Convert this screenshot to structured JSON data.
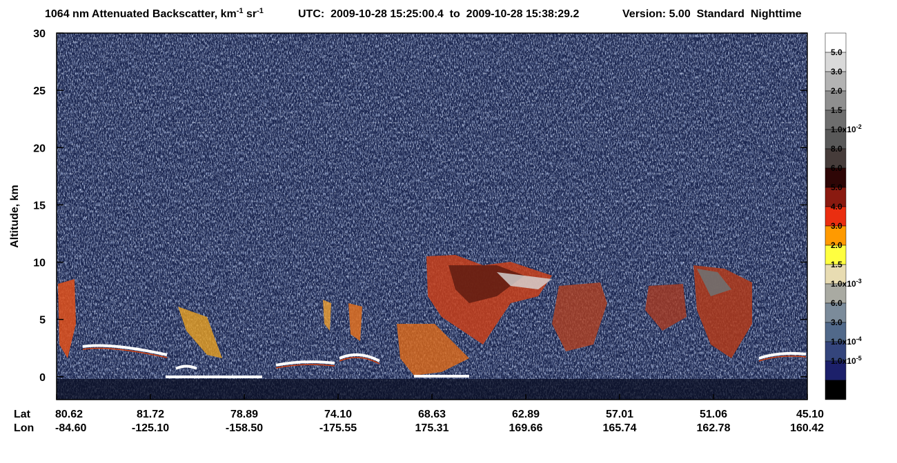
{
  "chart_data": {
    "type": "heatmap",
    "title": [
      "1064 nm Attenuated Backscatter, km",
      "-1",
      " sr",
      "-1"
    ],
    "utc": "UTC:  2009-10-28 15:25:00.4  to  2009-10-28 15:38:29.2",
    "version": "Version: 5.00  Standard  Nighttime",
    "ylabel": "Altitude, km",
    "ylim": [
      -2,
      30
    ],
    "yticks": [
      0,
      5,
      10,
      15,
      20,
      25,
      30
    ],
    "x_row_labels": [
      "Lat",
      "Lon"
    ],
    "lat": [
      "80.62",
      "81.72",
      "78.89",
      "74.10",
      "68.63",
      "62.89",
      "57.01",
      "51.06",
      "45.10"
    ],
    "lon": [
      "-84.60",
      "-125.10",
      "-158.50",
      "-175.55",
      "175.31",
      "169.66",
      "165.74",
      "162.78",
      "160.42"
    ],
    "colorbar": {
      "colors": [
        "#ffffff",
        "#d9d9d9",
        "#b3b3b3",
        "#8f8f8f",
        "#6e6e6e",
        "#595959",
        "#463c3a",
        "#2e0606",
        "#8a1a10",
        "#ea2e10",
        "#ff9a00",
        "#ffff40",
        "#e8dcb2",
        "#a9aaa2",
        "#7b8b9a",
        "#51698a",
        "#34457c",
        "#1c206a",
        "#000000"
      ],
      "labels": [
        {
          "label": "5.0"
        },
        {
          "label": "3.0"
        },
        {
          "label": "2.0"
        },
        {
          "label": "1.5"
        },
        {
          "label": "1.0x10",
          "sup": "-2"
        },
        {
          "label": "8.0"
        },
        {
          "label": "6.0"
        },
        {
          "label": "5.0"
        },
        {
          "label": "4.0"
        },
        {
          "label": "3.0"
        },
        {
          "label": "2.0"
        },
        {
          "label": "1.5"
        },
        {
          "label": "1.0x10",
          "sup": "-3"
        },
        {
          "label": "6.0"
        },
        {
          "label": "3.0"
        },
        {
          "label": "1.0x10",
          "sup": "-4"
        },
        {
          "label": "1.0x10",
          "sup": "-5"
        }
      ]
    }
  }
}
